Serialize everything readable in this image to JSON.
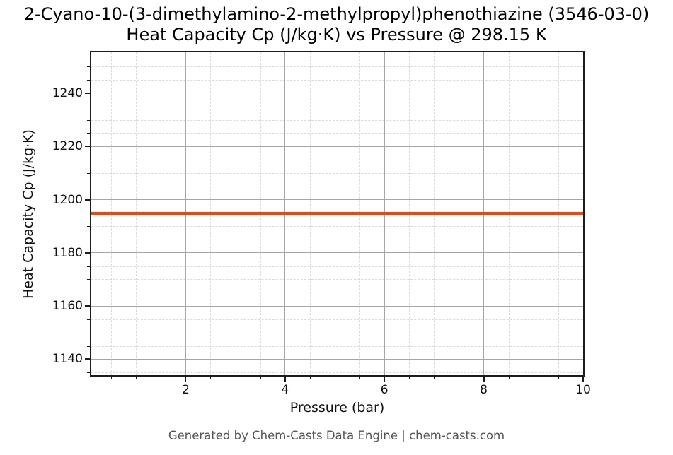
{
  "title": {
    "line1": "2-Cyano-10-(3-dimethylamino-2-methylpropyl)phenothiazine (3546-03-0)",
    "line2": "Heat Capacity Cp (J/kg·K) vs Pressure @ 298.15 K"
  },
  "footer": {
    "credit": "Generated by Chem-Casts Data Engine | chem-casts.com"
  },
  "chart_data": {
    "type": "line",
    "title": "2-Cyano-10-(3-dimethylamino-2-methylpropyl)phenothiazine (3546-03-0) — Heat Capacity Cp (J/kg·K) vs Pressure @ 298.15 K",
    "compound": "2-Cyano-10-(3-dimethylamino-2-methylpropyl)phenothiazine",
    "cas_number": "3546-03-0",
    "temperature": "298.15 K",
    "xlabel": "Pressure (bar)",
    "ylabel": "Heat Capacity Cp (J/kg·K)",
    "xlim": [
      0.1,
      10
    ],
    "ylim": [
      1134,
      1255.4
    ],
    "x_major_ticks": [
      2,
      4,
      6,
      8,
      10
    ],
    "x_minor_tick_step": 0.5,
    "y_major_ticks": [
      1140,
      1160,
      1180,
      1200,
      1220,
      1240
    ],
    "y_minor_tick_step": 5,
    "grid": {
      "visible": true,
      "major_style": "solid",
      "minor_style": "dashed"
    },
    "legend": "none",
    "series": [
      {
        "name": "Heat Capacity Cp",
        "color": "#cf5226",
        "linewidth": 4.5,
        "x": [
          0.1,
          1,
          2,
          3,
          4,
          5,
          6,
          7,
          8,
          9,
          10
        ],
        "y": [
          1194.8,
          1194.8,
          1194.8,
          1194.8,
          1194.8,
          1194.8,
          1194.8,
          1194.8,
          1194.8,
          1194.8,
          1194.8
        ],
        "note": "constant Cp ≈ 1194.8 J/kg·K across 0.1–10 bar"
      }
    ],
    "style": {
      "spine_color": "#1c1c1c",
      "major_grid_color": "#a6a6a6",
      "minor_grid_color": "#dadada",
      "tick_color": "#1c1c1c",
      "text_color": "#111111",
      "footer_color": "#555555",
      "background": "#ffffff"
    }
  }
}
